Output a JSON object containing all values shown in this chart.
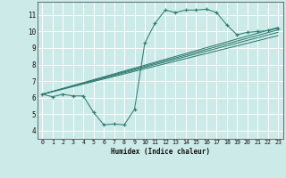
{
  "xlabel": "Humidex (Indice chaleur)",
  "bg_color": "#cceae8",
  "grid_color": "#ffffff",
  "line_color": "#2e7d72",
  "xlim": [
    -0.5,
    23.5
  ],
  "ylim": [
    3.5,
    11.8
  ],
  "xticks": [
    0,
    1,
    2,
    3,
    4,
    5,
    6,
    7,
    8,
    9,
    10,
    11,
    12,
    13,
    14,
    15,
    16,
    17,
    18,
    19,
    20,
    21,
    22,
    23
  ],
  "yticks": [
    4,
    5,
    6,
    7,
    8,
    9,
    10,
    11
  ],
  "curve_x": [
    0,
    1,
    2,
    3,
    4,
    5,
    6,
    7,
    8,
    9,
    10,
    11,
    12,
    13,
    14,
    15,
    16,
    17,
    18,
    19,
    20,
    21,
    22,
    23
  ],
  "curve_y": [
    6.2,
    6.05,
    6.2,
    6.1,
    6.1,
    5.1,
    4.35,
    4.4,
    4.35,
    5.3,
    9.3,
    10.5,
    11.3,
    11.15,
    11.3,
    11.3,
    11.35,
    11.15,
    10.4,
    9.8,
    9.95,
    10.0,
    10.05,
    10.2
  ],
  "line1_x": [
    0,
    23
  ],
  "line1_y": [
    6.2,
    10.25
  ],
  "line2_x": [
    0,
    23
  ],
  "line2_y": [
    6.2,
    9.95
  ],
  "line3_x": [
    0,
    23
  ],
  "line3_y": [
    6.2,
    9.75
  ],
  "line4_x": [
    0,
    23
  ],
  "line4_y": [
    6.2,
    10.1
  ]
}
